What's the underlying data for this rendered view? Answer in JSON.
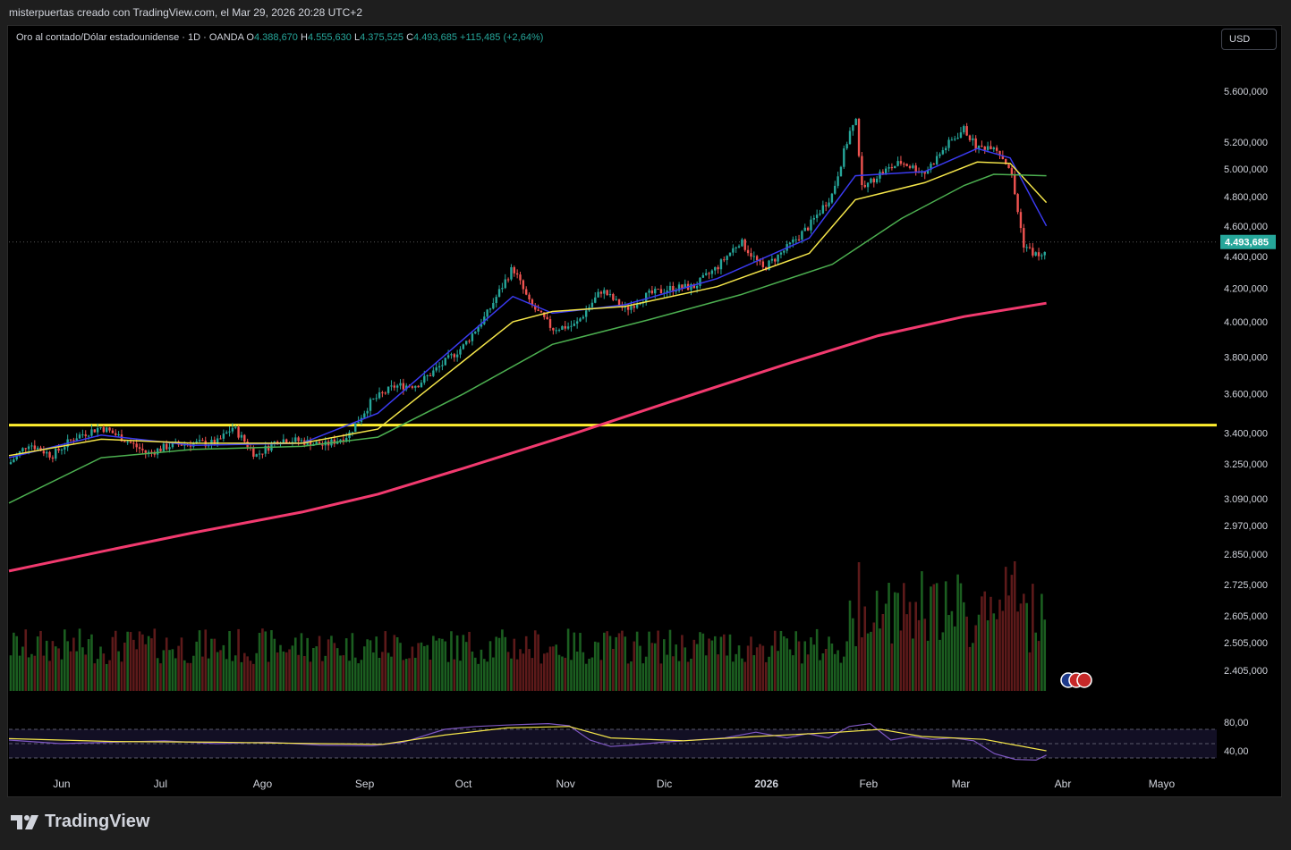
{
  "caption": "misterpuertas creado con TradingView.com, el Mar 29, 2026 20:28 UTC+2",
  "legend": {
    "symbol": "Oro al contado/Dólar estadounidense · 1D · OANDA",
    "o_label": "O",
    "o": "4.388,670",
    "h_label": "H",
    "h": "4.555,630",
    "l_label": "L",
    "l": "4.375,525",
    "c_label": "C",
    "c": "4.493,685",
    "change": "+115,485 (+2,64%)"
  },
  "currency": "USD",
  "brand": "TradingView",
  "colors": {
    "up": "#26a69a",
    "down": "#ef5350",
    "vol_up": "#1b5e20",
    "vol_down": "#5d1a1a",
    "ma_blue": "#3a3af0",
    "ma_yellow": "#f5e64a",
    "ma_green": "#4caf50",
    "ma_red": "#f23a6f",
    "support": "#ffee2e",
    "rsi": "#7e57c2"
  },
  "chart_data": {
    "type": "candlestick",
    "symbol": "XAUUSD",
    "timeframe": "1D",
    "scale": "log",
    "price_axis_ticks": [
      "5.600,000",
      "5.200,000",
      "5.000,000",
      "4.800,000",
      "4.600,000",
      "4.400,000",
      "4.200,000",
      "4.000,000",
      "3.800,000",
      "3.600,000",
      "3.400,000",
      "3.250,000",
      "3.090,000",
      "2.970,000",
      "2.850,000",
      "2.725,000",
      "2.605,000",
      "2.505,000",
      "2.405,000"
    ],
    "price_axis_values": [
      5600,
      5200,
      5000,
      4800,
      4600,
      4400,
      4200,
      4000,
      3800,
      3600,
      3400,
      3250,
      3090,
      2970,
      2850,
      2725,
      2605,
      2505,
      2405
    ],
    "time_axis_labels": [
      "Jun",
      "Jul",
      "Ago",
      "Sep",
      "Oct",
      "Nov",
      "Dic",
      "2026",
      "Feb",
      "Mar",
      "Abr",
      "Mayo"
    ],
    "last_price_label": "4.493,685",
    "last_price": 4493.685,
    "support_level": 3440,
    "close_path": [
      [
        "2025-05-16",
        3250
      ],
      [
        "2025-05-22",
        3350
      ],
      [
        "2025-05-29",
        3290
      ],
      [
        "2025-06-05",
        3380
      ],
      [
        "2025-06-13",
        3430
      ],
      [
        "2025-06-20",
        3370
      ],
      [
        "2025-06-27",
        3300
      ],
      [
        "2025-07-04",
        3340
      ],
      [
        "2025-07-11",
        3350
      ],
      [
        "2025-07-18",
        3350
      ],
      [
        "2025-07-23",
        3430
      ],
      [
        "2025-07-30",
        3290
      ],
      [
        "2025-08-06",
        3370
      ],
      [
        "2025-08-13",
        3360
      ],
      [
        "2025-08-20",
        3340
      ],
      [
        "2025-08-27",
        3390
      ],
      [
        "2025-09-03",
        3560
      ],
      [
        "2025-09-10",
        3640
      ],
      [
        "2025-09-17",
        3650
      ],
      [
        "2025-09-24",
        3750
      ],
      [
        "2025-10-01",
        3860
      ],
      [
        "2025-10-08",
        4040
      ],
      [
        "2025-10-16",
        4330
      ],
      [
        "2025-10-21",
        4110
      ],
      [
        "2025-10-28",
        3960
      ],
      [
        "2025-11-04",
        3980
      ],
      [
        "2025-11-12",
        4190
      ],
      [
        "2025-11-19",
        4070
      ],
      [
        "2025-11-26",
        4160
      ],
      [
        "2025-12-03",
        4200
      ],
      [
        "2025-12-10",
        4210
      ],
      [
        "2025-12-17",
        4330
      ],
      [
        "2025-12-24",
        4500
      ],
      [
        "2025-12-31",
        4320
      ],
      [
        "2026-01-07",
        4450
      ],
      [
        "2026-01-14",
        4600
      ],
      [
        "2026-01-21",
        4820
      ],
      [
        "2026-01-28",
        5420
      ],
      [
        "2026-01-30",
        4850
      ],
      [
        "2026-02-04",
        4960
      ],
      [
        "2026-02-11",
        5050
      ],
      [
        "2026-02-18",
        4970
      ],
      [
        "2026-02-25",
        5180
      ],
      [
        "2026-03-02",
        5300
      ],
      [
        "2026-03-06",
        5150
      ],
      [
        "2026-03-11",
        5180
      ],
      [
        "2026-03-16",
        5000
      ],
      [
        "2026-03-20",
        4480
      ],
      [
        "2026-03-23",
        4420
      ],
      [
        "2026-03-26",
        4390
      ],
      [
        "2026-03-27",
        4494
      ]
    ],
    "ma_lines": [
      {
        "color": "ma_blue",
        "points": [
          [
            "2025-05-16",
            3280
          ],
          [
            "2025-06-13",
            3390
          ],
          [
            "2025-07-11",
            3340
          ],
          [
            "2025-08-13",
            3350
          ],
          [
            "2025-09-05",
            3500
          ],
          [
            "2025-10-16",
            4150
          ],
          [
            "2025-10-28",
            4050
          ],
          [
            "2025-11-19",
            4100
          ],
          [
            "2025-12-17",
            4260
          ],
          [
            "2026-01-14",
            4520
          ],
          [
            "2026-01-28",
            4950
          ],
          [
            "2026-02-18",
            4980
          ],
          [
            "2026-03-06",
            5150
          ],
          [
            "2026-03-16",
            5080
          ],
          [
            "2026-03-27",
            4600
          ]
        ]
      },
      {
        "color": "ma_yellow",
        "points": [
          [
            "2025-05-16",
            3290
          ],
          [
            "2025-06-13",
            3370
          ],
          [
            "2025-07-11",
            3350
          ],
          [
            "2025-08-13",
            3350
          ],
          [
            "2025-09-05",
            3420
          ],
          [
            "2025-10-16",
            4000
          ],
          [
            "2025-10-28",
            4060
          ],
          [
            "2025-11-19",
            4090
          ],
          [
            "2025-12-17",
            4210
          ],
          [
            "2026-01-14",
            4420
          ],
          [
            "2026-01-28",
            4780
          ],
          [
            "2026-02-18",
            4900
          ],
          [
            "2026-03-06",
            5050
          ],
          [
            "2026-03-16",
            5040
          ],
          [
            "2026-03-27",
            4760
          ]
        ]
      },
      {
        "color": "ma_green",
        "points": [
          [
            "2025-05-16",
            3070
          ],
          [
            "2025-06-13",
            3280
          ],
          [
            "2025-07-11",
            3320
          ],
          [
            "2025-08-13",
            3335
          ],
          [
            "2025-09-05",
            3380
          ],
          [
            "2025-10-01",
            3600
          ],
          [
            "2025-10-28",
            3870
          ],
          [
            "2025-11-26",
            4010
          ],
          [
            "2025-12-24",
            4160
          ],
          [
            "2026-01-21",
            4350
          ],
          [
            "2026-02-11",
            4650
          ],
          [
            "2026-03-02",
            4880
          ],
          [
            "2026-03-11",
            4960
          ],
          [
            "2026-03-27",
            4950
          ]
        ]
      },
      {
        "color": "ma_red",
        "points": [
          [
            "2025-05-16",
            2780
          ],
          [
            "2025-06-13",
            2860
          ],
          [
            "2025-07-11",
            2940
          ],
          [
            "2025-08-13",
            3030
          ],
          [
            "2025-09-05",
            3110
          ],
          [
            "2025-10-01",
            3230
          ],
          [
            "2025-11-04",
            3400
          ],
          [
            "2025-12-03",
            3560
          ],
          [
            "2026-01-07",
            3760
          ],
          [
            "2026-02-04",
            3920
          ],
          [
            "2026-03-02",
            4030
          ],
          [
            "2026-03-27",
            4110
          ]
        ]
      }
    ],
    "rsi": {
      "axis_ticks": [
        "80,00",
        "40,00"
      ],
      "axis_values": [
        80,
        40
      ],
      "upper_band": 70,
      "lower_band": 30,
      "points": [
        [
          0,
          55
        ],
        [
          0.05,
          50
        ],
        [
          0.1,
          52
        ],
        [
          0.15,
          54
        ],
        [
          0.2,
          50
        ],
        [
          0.25,
          52
        ],
        [
          0.3,
          48
        ],
        [
          0.35,
          47
        ],
        [
          0.38,
          52
        ],
        [
          0.42,
          70
        ],
        [
          0.45,
          74
        ],
        [
          0.48,
          76
        ],
        [
          0.5,
          77
        ],
        [
          0.52,
          78
        ],
        [
          0.54,
          75
        ],
        [
          0.56,
          55
        ],
        [
          0.58,
          46
        ],
        [
          0.6,
          48
        ],
        [
          0.63,
          52
        ],
        [
          0.66,
          55
        ],
        [
          0.69,
          58
        ],
        [
          0.72,
          66
        ],
        [
          0.75,
          58
        ],
        [
          0.77,
          64
        ],
        [
          0.79,
          58
        ],
        [
          0.81,
          74
        ],
        [
          0.83,
          78
        ],
        [
          0.85,
          55
        ],
        [
          0.87,
          60
        ],
        [
          0.89,
          56
        ],
        [
          0.91,
          58
        ],
        [
          0.93,
          54
        ],
        [
          0.95,
          36
        ],
        [
          0.97,
          28
        ],
        [
          0.99,
          27
        ],
        [
          1.0,
          34
        ]
      ],
      "signal": [
        [
          0,
          57
        ],
        [
          0.1,
          53
        ],
        [
          0.2,
          52
        ],
        [
          0.3,
          50
        ],
        [
          0.36,
          49
        ],
        [
          0.42,
          62
        ],
        [
          0.48,
          72
        ],
        [
          0.54,
          74
        ],
        [
          0.58,
          58
        ],
        [
          0.65,
          54
        ],
        [
          0.72,
          60
        ],
        [
          0.8,
          66
        ],
        [
          0.84,
          70
        ],
        [
          0.88,
          60
        ],
        [
          0.94,
          56
        ],
        [
          0.97,
          48
        ],
        [
          1.0,
          40
        ]
      ]
    }
  }
}
